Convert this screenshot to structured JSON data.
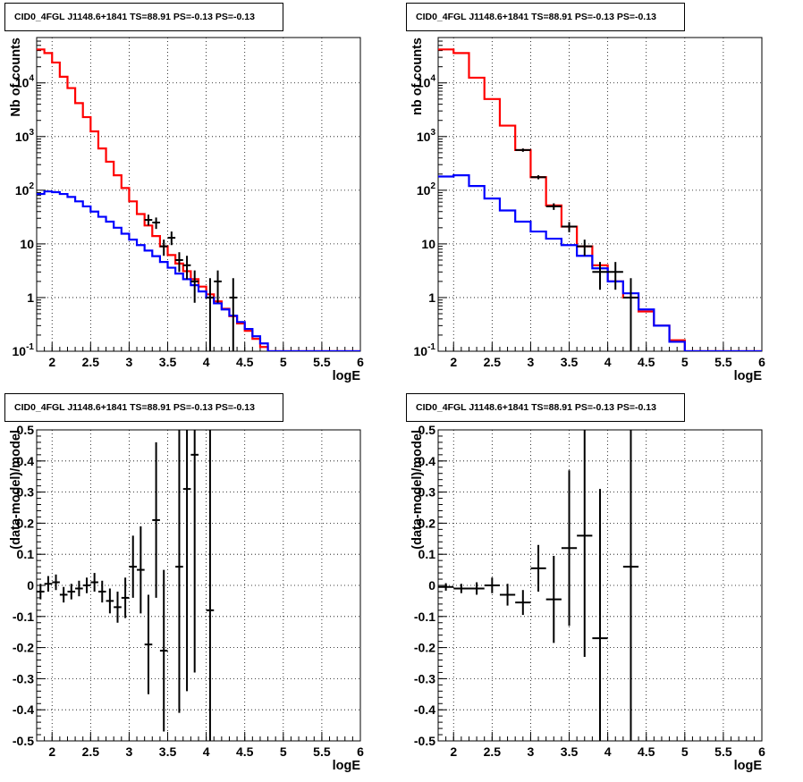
{
  "chart_data": [
    {
      "type": "line",
      "title": "CID0_4FGL J1148.6+1841 TS=88.91 PS=-0.13 PS=-0.13",
      "xlabel": "logE",
      "ylabel": "Nb of counts",
      "yscale": "log",
      "xlim": [
        1.8,
        6.0
      ],
      "ylim": [
        0.1,
        70000
      ],
      "grid": true,
      "x_ticks": [
        "2",
        "2.5",
        "3",
        "3.5",
        "4",
        "4.5",
        "5",
        "5.5",
        "6"
      ],
      "y_ticks": [
        "10^-1",
        "1",
        "10",
        "10^2",
        "10^3",
        "10^4"
      ],
      "bin_edges": [
        1.8,
        1.9,
        2.0,
        2.1,
        2.2,
        2.3,
        2.4,
        2.5,
        2.6,
        2.7,
        2.8,
        2.9,
        3.0,
        3.1,
        3.2,
        3.3,
        3.4,
        3.5,
        3.6,
        3.7,
        3.8,
        3.9,
        4.0,
        4.1,
        4.2,
        4.3,
        4.4,
        4.5,
        4.6,
        4.7,
        4.8,
        4.9,
        5.0,
        5.1,
        5.2,
        5.3,
        5.4,
        5.5,
        5.6,
        5.7,
        5.8,
        5.9,
        6.0
      ],
      "series": [
        {
          "color": "#ff0000",
          "values": [
            42000,
            36000,
            24000,
            13000,
            8000,
            4200,
            2300,
            1250,
            600,
            340,
            190,
            110,
            62,
            36,
            22,
            14,
            9,
            6.2,
            4.3,
            3.1,
            2.2,
            1.6,
            1.15,
            0.85,
            0.62,
            0.45,
            0.33,
            0.24,
            0.17,
            0.12,
            0.1,
            0.1,
            0.1,
            0.1,
            0.1,
            0.1,
            0.1,
            0.1,
            0.1,
            0.1,
            0.1,
            0.1
          ]
        },
        {
          "color": "#0000ff",
          "values": [
            85,
            95,
            92,
            85,
            75,
            62,
            50,
            40,
            32,
            26,
            20,
            15.5,
            12,
            9.5,
            7.5,
            5.9,
            4.6,
            3.6,
            2.8,
            2.2,
            1.7,
            1.3,
            1.0,
            0.78,
            0.6,
            0.46,
            0.35,
            0.26,
            0.19,
            0.14,
            0.1,
            0.1,
            0.1,
            0.1,
            0.1,
            0.1,
            0.1,
            0.1,
            0.1,
            0.1,
            0.1,
            0.1
          ]
        }
      ],
      "points": [
        {
          "x": 3.25,
          "y": 28,
          "ylo": 22,
          "yhi": 35
        },
        {
          "x": 3.35,
          "y": 25,
          "ylo": 19,
          "yhi": 31
        },
        {
          "x": 3.45,
          "y": 9,
          "ylo": 6,
          "yhi": 12
        },
        {
          "x": 3.55,
          "y": 13,
          "ylo": 9.5,
          "yhi": 17
        },
        {
          "x": 3.65,
          "y": 5,
          "ylo": 3,
          "yhi": 7
        },
        {
          "x": 3.75,
          "y": 4,
          "ylo": 2.2,
          "yhi": 6
        },
        {
          "x": 3.85,
          "y": 2,
          "ylo": 0.8,
          "yhi": 3.2
        },
        {
          "x": 4.05,
          "y": 1,
          "ylo": 0.1,
          "yhi": 2.3
        },
        {
          "x": 4.15,
          "y": 2,
          "ylo": 0.8,
          "yhi": 3.2
        },
        {
          "x": 4.35,
          "y": 1,
          "ylo": 0.1,
          "yhi": 2.3
        }
      ]
    },
    {
      "type": "line",
      "title": "CID0_4FGL J1148.6+1841 TS=88.91 PS=-0.13 PS=-0.13",
      "xlabel": "logE",
      "ylabel": "nb of counts",
      "yscale": "log",
      "xlim": [
        1.8,
        6.0
      ],
      "ylim": [
        0.1,
        70000
      ],
      "grid": true,
      "x_ticks": [
        "2",
        "2.5",
        "3",
        "3.5",
        "4",
        "4.5",
        "5",
        "5.5",
        "6"
      ],
      "y_ticks": [
        "10^-1",
        "1",
        "10",
        "10^2",
        "10^3",
        "10^4"
      ],
      "bin_edges": [
        1.8,
        2.0,
        2.2,
        2.4,
        2.6,
        2.8,
        3.0,
        3.2,
        3.4,
        3.6,
        3.8,
        4.0,
        4.2,
        4.4,
        4.6,
        4.8,
        5.0,
        5.2,
        5.4,
        5.6,
        5.8,
        6.0
      ],
      "series": [
        {
          "color": "#ff0000",
          "values": [
            42000,
            36000,
            12500,
            5000,
            1600,
            560,
            175,
            52,
            21,
            9,
            4,
            2,
            1,
            0.55,
            0.3,
            0.16,
            0.1,
            0.1,
            0.1,
            0.1,
            0.1
          ]
        },
        {
          "color": "#0000ff",
          "values": [
            180,
            190,
            120,
            70,
            42,
            26,
            17,
            12.5,
            9.5,
            6,
            3.5,
            2,
            1.2,
            0.6,
            0.3,
            0.15,
            0.1,
            0.1,
            0.1,
            0.1,
            0.1
          ]
        }
      ],
      "points": [
        {
          "x": 2.9,
          "y": 560,
          "ylo": 520,
          "yhi": 600
        },
        {
          "x": 3.1,
          "y": 175,
          "ylo": 160,
          "yhi": 190
        },
        {
          "x": 3.3,
          "y": 50,
          "ylo": 43,
          "yhi": 57
        },
        {
          "x": 3.5,
          "y": 21,
          "ylo": 16.5,
          "yhi": 25.5
        },
        {
          "x": 3.7,
          "y": 9,
          "ylo": 6,
          "yhi": 12
        },
        {
          "x": 3.9,
          "y": 3,
          "ylo": 1.4,
          "yhi": 4.6
        },
        {
          "x": 4.1,
          "y": 3,
          "ylo": 1.4,
          "yhi": 4.6
        },
        {
          "x": 4.3,
          "y": 1,
          "ylo": 0.1,
          "yhi": 2.3
        }
      ]
    },
    {
      "type": "scatter",
      "title": "CID0_4FGL J1148.6+1841 TS=88.91 PS=-0.13 PS=-0.13",
      "xlabel": "logE",
      "ylabel": "(data-model)/model",
      "xlim": [
        1.8,
        6.0
      ],
      "ylim": [
        -0.5,
        0.5
      ],
      "grid": true,
      "bin_width": 0.1,
      "x_ticks": [
        "2",
        "2.5",
        "3",
        "3.5",
        "4",
        "4.5",
        "5",
        "5.5",
        "6"
      ],
      "y_ticks": [
        "-0.5",
        "-0.4",
        "-0.3",
        "-0.2",
        "-0.1",
        "0",
        "0.1",
        "0.2",
        "0.3",
        "0.4",
        "0.5"
      ],
      "points": [
        {
          "x": 1.85,
          "y": -0.02,
          "err": 0.025
        },
        {
          "x": 1.95,
          "y": 0.005,
          "err": 0.025
        },
        {
          "x": 2.05,
          "y": 0.01,
          "err": 0.025
        },
        {
          "x": 2.15,
          "y": -0.03,
          "err": 0.025
        },
        {
          "x": 2.25,
          "y": -0.02,
          "err": 0.025
        },
        {
          "x": 2.35,
          "y": -0.01,
          "err": 0.025
        },
        {
          "x": 2.45,
          "y": 0.0,
          "err": 0.025
        },
        {
          "x": 2.55,
          "y": 0.01,
          "err": 0.03
        },
        {
          "x": 2.65,
          "y": -0.02,
          "err": 0.035
        },
        {
          "x": 2.75,
          "y": -0.05,
          "err": 0.04
        },
        {
          "x": 2.85,
          "y": -0.07,
          "err": 0.05
        },
        {
          "x": 2.95,
          "y": -0.04,
          "err": 0.065
        },
        {
          "x": 3.05,
          "y": 0.06,
          "err": 0.1
        },
        {
          "x": 3.15,
          "y": 0.05,
          "err": 0.14
        },
        {
          "x": 3.25,
          "y": -0.19,
          "err": 0.16
        },
        {
          "x": 3.35,
          "y": 0.21,
          "err": 0.25
        },
        {
          "x": 3.45,
          "y": -0.21,
          "err": 0.26
        },
        {
          "x": 3.65,
          "y": 0.06,
          "err": 0.47
        },
        {
          "x": 3.75,
          "y": 0.31,
          "err": 0.65
        },
        {
          "x": 3.85,
          "y": 0.42,
          "err": 0.7
        },
        {
          "x": 4.05,
          "y": -0.08,
          "err": 1.0
        }
      ]
    },
    {
      "type": "scatter",
      "title": "CID0_4FGL J1148.6+1841 TS=88.91 PS=-0.13 PS=-0.13",
      "xlabel": "logE",
      "ylabel": "(data-model)/model",
      "xlim": [
        1.8,
        6.0
      ],
      "ylim": [
        -0.5,
        0.5
      ],
      "grid": true,
      "bin_width": 0.2,
      "x_ticks": [
        "2",
        "2.5",
        "3",
        "3.5",
        "4",
        "4.5",
        "5",
        "5.5",
        "6"
      ],
      "y_ticks": [
        "-0.5",
        "-0.4",
        "-0.3",
        "-0.2",
        "-0.1",
        "0",
        "0.1",
        "0.2",
        "0.3",
        "0.4",
        "0.5"
      ],
      "points": [
        {
          "x": 1.9,
          "y": -0.005,
          "err": 0.012
        },
        {
          "x": 2.1,
          "y": -0.01,
          "err": 0.015
        },
        {
          "x": 2.3,
          "y": -0.01,
          "err": 0.02
        },
        {
          "x": 2.5,
          "y": 0.0,
          "err": 0.025
        },
        {
          "x": 2.7,
          "y": -0.03,
          "err": 0.035
        },
        {
          "x": 2.9,
          "y": -0.055,
          "err": 0.04
        },
        {
          "x": 3.1,
          "y": 0.055,
          "err": 0.075
        },
        {
          "x": 3.3,
          "y": -0.045,
          "err": 0.14
        },
        {
          "x": 3.5,
          "y": 0.12,
          "err": 0.25
        },
        {
          "x": 3.7,
          "y": 0.16,
          "err": 0.39
        },
        {
          "x": 3.9,
          "y": -0.17,
          "err": 0.48
        },
        {
          "x": 4.3,
          "y": 0.06,
          "err": 1.0
        }
      ]
    }
  ]
}
